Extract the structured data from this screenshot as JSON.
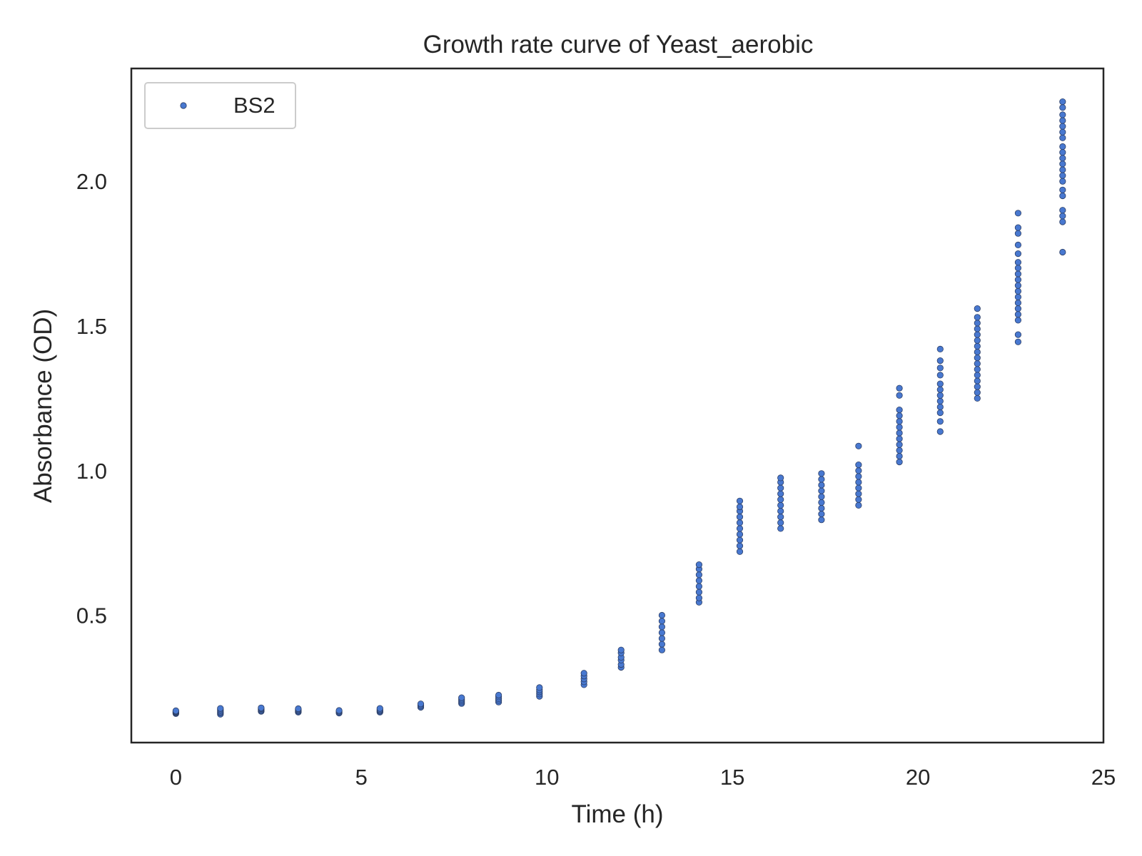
{
  "chart_data": {
    "type": "scatter",
    "title": "Growth rate curve of Yeast_aerobic",
    "xlabel": "Time (h)",
    "ylabel": "Absorbance (OD)",
    "xlim": [
      -1.2,
      25
    ],
    "ylim": [
      0.06,
      2.39
    ],
    "xticks": [
      0,
      5,
      10,
      15,
      20,
      25
    ],
    "xtick_labels": [
      "0",
      "5",
      "10",
      "15",
      "20",
      "25"
    ],
    "yticks": [
      0.5,
      1.0,
      1.5,
      2.0
    ],
    "ytick_labels": [
      "0.5",
      "1.0",
      "1.5",
      "2.0"
    ],
    "grid": false,
    "legend_position": "top-left",
    "series": [
      {
        "name": "BS2",
        "color": "#4878d0",
        "points": [
          {
            "x": 0.0,
            "values": [
              0.16,
              0.162,
              0.164,
              0.166,
              0.168,
              0.17
            ]
          },
          {
            "x": 1.2,
            "values": [
              0.158,
              0.162,
              0.166,
              0.17,
              0.174,
              0.178
            ]
          },
          {
            "x": 2.3,
            "values": [
              0.168,
              0.171,
              0.174,
              0.177,
              0.18
            ]
          },
          {
            "x": 3.3,
            "values": [
              0.165,
              0.168,
              0.171,
              0.174,
              0.177
            ]
          },
          {
            "x": 4.4,
            "values": [
              0.162,
              0.165,
              0.168,
              0.171
            ]
          },
          {
            "x": 5.5,
            "values": [
              0.165,
              0.168,
              0.171,
              0.174,
              0.178
            ]
          },
          {
            "x": 6.6,
            "values": [
              0.182,
              0.186,
              0.19,
              0.194
            ]
          },
          {
            "x": 7.7,
            "values": [
              0.195,
              0.2,
              0.205,
              0.21,
              0.215
            ]
          },
          {
            "x": 8.7,
            "values": [
              0.2,
              0.206,
              0.212,
              0.218,
              0.224
            ]
          },
          {
            "x": 9.8,
            "values": [
              0.22,
              0.228,
              0.235,
              0.242,
              0.25
            ]
          },
          {
            "x": 11.0,
            "values": [
              0.26,
              0.27,
              0.28,
              0.29,
              0.3
            ]
          },
          {
            "x": 12.0,
            "values": [
              0.32,
              0.33,
              0.345,
              0.355,
              0.37,
              0.38
            ]
          },
          {
            "x": 13.1,
            "values": [
              0.38,
              0.4,
              0.42,
              0.44,
              0.46,
              0.48,
              0.5
            ]
          },
          {
            "x": 14.1,
            "values": [
              0.545,
              0.56,
              0.58,
              0.6,
              0.62,
              0.64,
              0.66,
              0.675
            ]
          },
          {
            "x": 15.2,
            "values": [
              0.72,
              0.74,
              0.76,
              0.78,
              0.8,
              0.82,
              0.84,
              0.86,
              0.875,
              0.895
            ]
          },
          {
            "x": 16.3,
            "values": [
              0.8,
              0.82,
              0.84,
              0.86,
              0.88,
              0.9,
              0.92,
              0.94,
              0.96,
              0.975
            ]
          },
          {
            "x": 17.4,
            "values": [
              0.83,
              0.85,
              0.87,
              0.89,
              0.91,
              0.93,
              0.95,
              0.97,
              0.99
            ]
          },
          {
            "x": 18.4,
            "values": [
              0.88,
              0.9,
              0.92,
              0.94,
              0.96,
              0.98,
              1.0,
              1.02,
              1.085
            ]
          },
          {
            "x": 19.5,
            "values": [
              1.03,
              1.05,
              1.07,
              1.09,
              1.11,
              1.13,
              1.15,
              1.17,
              1.19,
              1.21,
              1.26,
              1.285
            ]
          },
          {
            "x": 20.6,
            "values": [
              1.135,
              1.17,
              1.2,
              1.22,
              1.24,
              1.26,
              1.28,
              1.3,
              1.33,
              1.355,
              1.38,
              1.42
            ]
          },
          {
            "x": 21.6,
            "values": [
              1.25,
              1.27,
              1.29,
              1.31,
              1.33,
              1.35,
              1.37,
              1.39,
              1.41,
              1.43,
              1.45,
              1.47,
              1.49,
              1.51,
              1.53,
              1.56
            ]
          },
          {
            "x": 22.7,
            "values": [
              1.445,
              1.47,
              1.52,
              1.54,
              1.56,
              1.58,
              1.6,
              1.62,
              1.64,
              1.66,
              1.68,
              1.7,
              1.72,
              1.75,
              1.78,
              1.82,
              1.84,
              1.89
            ]
          },
          {
            "x": 23.9,
            "values": [
              1.755,
              1.86,
              1.88,
              1.9,
              1.95,
              1.97,
              2.0,
              2.02,
              2.04,
              2.06,
              2.08,
              2.1,
              2.12,
              2.15,
              2.17,
              2.19,
              2.21,
              2.23,
              2.255,
              2.275
            ]
          }
        ]
      }
    ]
  }
}
